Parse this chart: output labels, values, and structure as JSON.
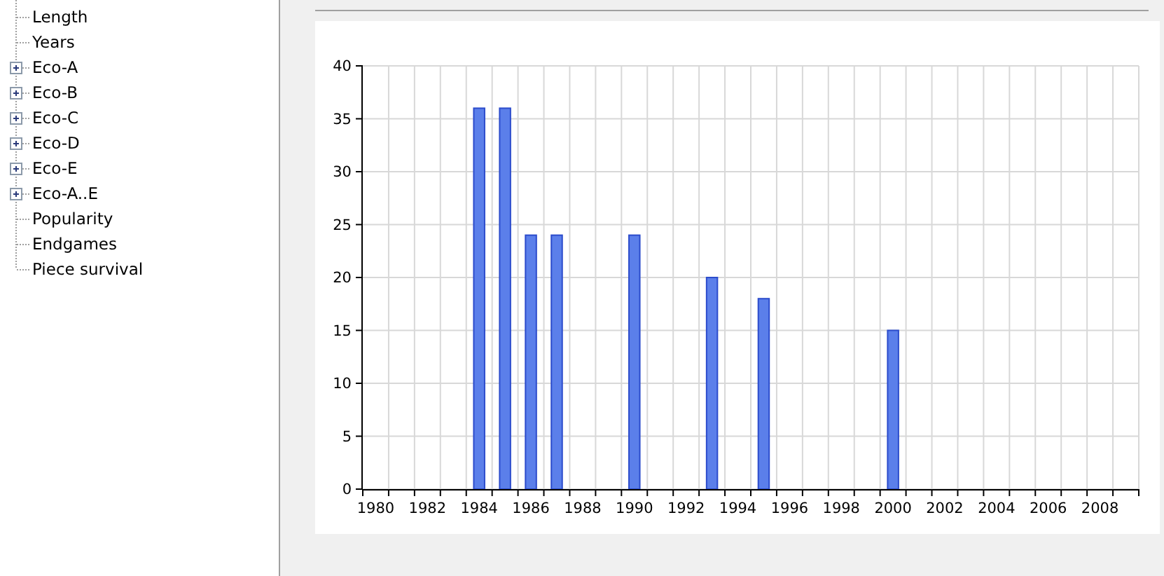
{
  "chart_data": {
    "type": "bar",
    "categories": [
      "1980",
      null,
      "1982",
      null,
      "1984",
      null,
      "1986",
      null,
      "1988",
      null,
      "1990",
      null,
      "1992",
      null,
      "1994",
      null,
      "1996",
      null,
      "1998",
      null,
      "2000",
      null,
      "2002",
      null,
      "2004",
      null,
      "2006",
      null,
      "2008",
      null
    ],
    "values": [
      0,
      0,
      0,
      0,
      36,
      36,
      24,
      24,
      0,
      0,
      24,
      0,
      0,
      20,
      0,
      18,
      0,
      0,
      0,
      0,
      15,
      0,
      0,
      0,
      0,
      0,
      0,
      0,
      0,
      0
    ],
    "color": "#5b7fea",
    "ylim": [
      0,
      40
    ],
    "yticks": [
      0,
      5,
      10,
      15,
      20,
      25,
      30,
      35,
      40
    ],
    "grid": true,
    "annotations": [
      "Length",
      "Years",
      "Eco-A",
      "Eco-B",
      "Eco-C",
      "Eco-D",
      "Eco-E",
      "Eco-A..E",
      "Popularity",
      "Endgames",
      "Piece survival"
    ]
  }
}
